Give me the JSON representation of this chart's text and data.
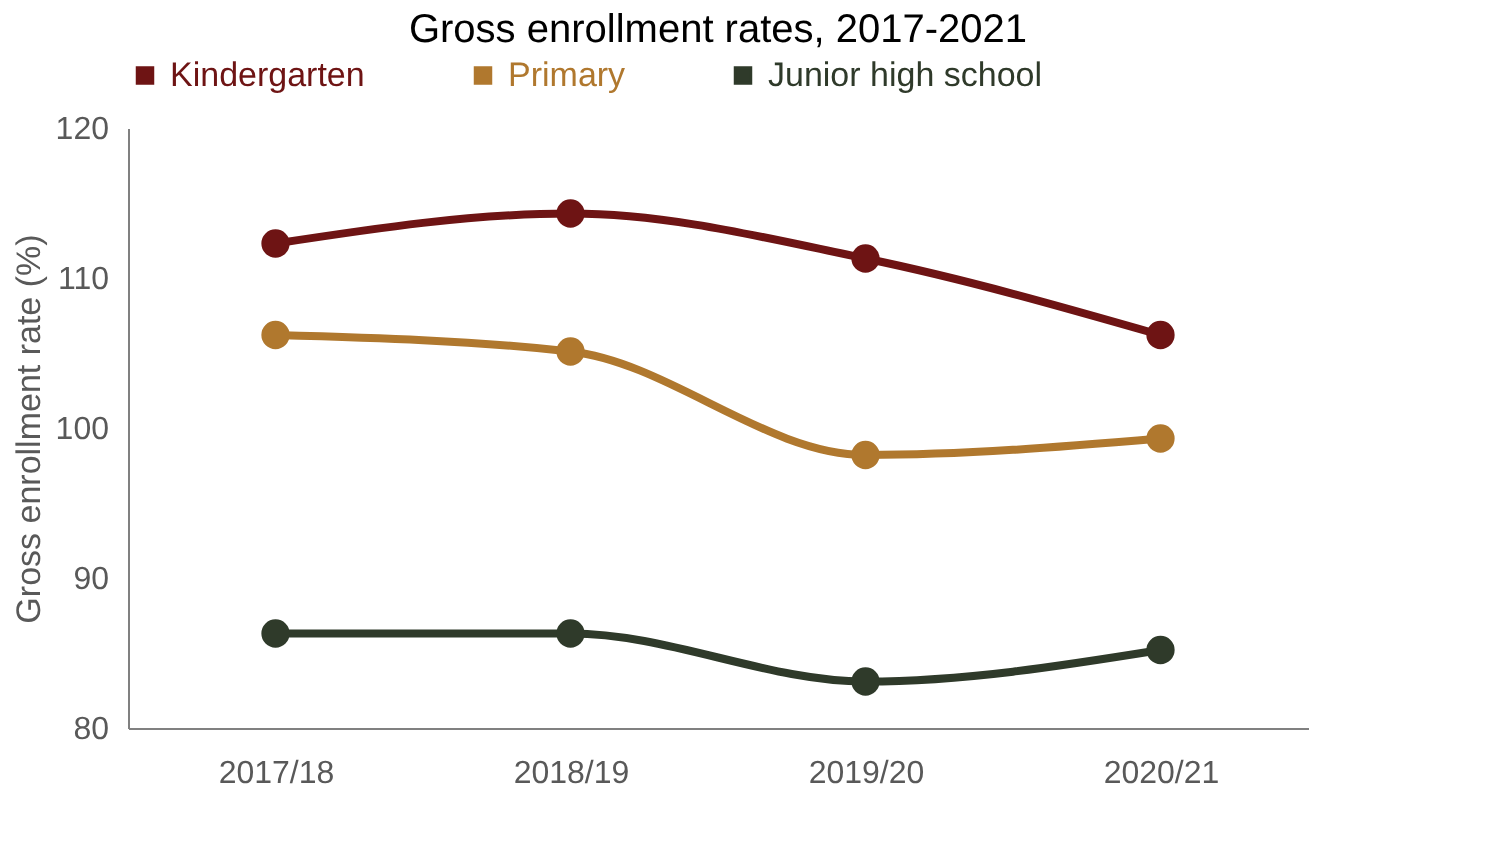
{
  "chart_data": {
    "type": "line",
    "title": "Gross enrollment rates, 2017-2021",
    "ylabel": "Gross enrollment rate (%)",
    "categories": [
      "2017/18",
      "2018/19",
      "2019/20",
      "2020/21"
    ],
    "series": [
      {
        "name": "Kindergarten",
        "color": "#6e1414",
        "values": [
          112.3,
          114.3,
          111.3,
          106.2
        ]
      },
      {
        "name": "Primary",
        "color": "#b0782e",
        "values": [
          106.2,
          105.1,
          98.2,
          99.3
        ]
      },
      {
        "name": "Junior high school",
        "color": "#2f3a2a",
        "values": [
          86.3,
          86.3,
          83.1,
          85.2
        ]
      }
    ],
    "ylim": [
      80,
      120
    ],
    "yticks": [
      80,
      90,
      100,
      110,
      120
    ],
    "grid": false,
    "legend": "top",
    "marker": "circle",
    "line_style": "solid"
  }
}
